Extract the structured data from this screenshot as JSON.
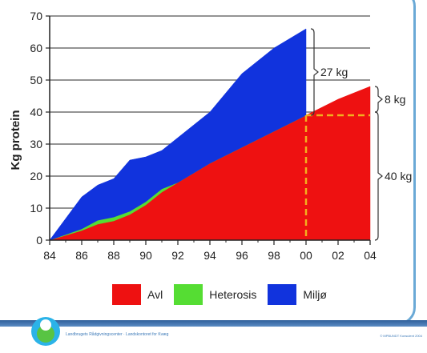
{
  "chart_data": {
    "type": "area",
    "stacked": true,
    "ylabel": "Kg protein",
    "xlabel": "",
    "ylim": [
      0,
      70
    ],
    "yticks": [
      0,
      10,
      20,
      30,
      40,
      50,
      60,
      70
    ],
    "xticks": [
      "84",
      "86",
      "88",
      "90",
      "92",
      "94",
      "96",
      "98",
      "00",
      "02",
      "04"
    ],
    "grid": true,
    "legend_position": "bottom",
    "series": [
      {
        "name": "Avl",
        "color": "#ee1111",
        "points": [
          [
            1984,
            0
          ],
          [
            1986,
            3
          ],
          [
            1987,
            5
          ],
          [
            1988,
            6
          ],
          [
            1989,
            8
          ],
          [
            1990,
            11
          ],
          [
            1991,
            15
          ],
          [
            1992,
            18
          ],
          [
            1994,
            24
          ],
          [
            1996,
            29
          ],
          [
            1998,
            34
          ],
          [
            2000,
            39
          ],
          [
            2002,
            44
          ],
          [
            2004,
            48
          ]
        ]
      },
      {
        "name": "Heterosis",
        "color": "#55dd33",
        "points": [
          [
            1984,
            0
          ],
          [
            1986,
            0.5
          ],
          [
            1987,
            1.2
          ],
          [
            1988,
            1.2
          ],
          [
            1989,
            1
          ],
          [
            1990,
            1
          ],
          [
            1991,
            1
          ],
          [
            1992,
            0
          ],
          [
            1994,
            0
          ],
          [
            1996,
            0
          ],
          [
            1998,
            0
          ],
          [
            2000,
            0
          ]
        ]
      },
      {
        "name": "Miljø",
        "color": "#1133dd",
        "points": [
          [
            1984,
            0
          ],
          [
            1986,
            10
          ],
          [
            1987,
            11
          ],
          [
            1988,
            12
          ],
          [
            1989,
            16
          ],
          [
            1990,
            14
          ],
          [
            1991,
            12
          ],
          [
            1992,
            14
          ],
          [
            1994,
            16
          ],
          [
            1996,
            23
          ],
          [
            1998,
            26
          ],
          [
            2000,
            27
          ]
        ]
      }
    ],
    "annotations": [
      {
        "text": "27 kg",
        "from_year": 2000,
        "from": 39,
        "to": 66
      },
      {
        "text": "8 kg",
        "from_year": 2004,
        "from": 40,
        "to": 48
      },
      {
        "text": "40 kg",
        "from_year": 2004,
        "from": 0,
        "to": 40
      }
    ],
    "dashed_reference": {
      "year": 2000,
      "value": 39,
      "color": "#f2b01f"
    }
  },
  "legend": {
    "avl": "Avl",
    "heterosis": "Heterosis",
    "miljo": "Miljø"
  },
  "footer": {
    "left_text": "Landbrugets Rådgivningscenter · Landskontoret for Kvæg",
    "right_text": "© MPBUNDT Konsulent 2004"
  }
}
